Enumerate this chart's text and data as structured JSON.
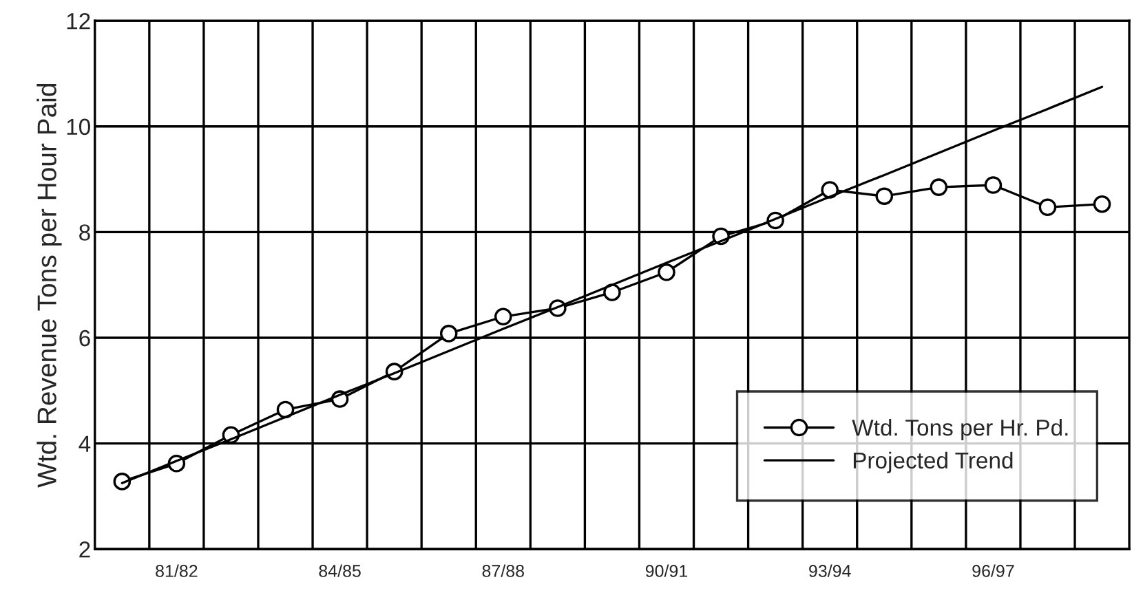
{
  "chart_data": {
    "type": "line",
    "ylabel": "Wtd. Revenue Tons per Hour Paid",
    "categories": [
      null,
      "81/82",
      null,
      null,
      "84/85",
      null,
      null,
      "87/88",
      null,
      null,
      "90/91",
      null,
      null,
      "93/94",
      null,
      null,
      "96/97",
      null,
      null
    ],
    "series": [
      {
        "name": "Wtd. Tons per Hr. Pd.",
        "color": "#000000",
        "marker": "circle",
        "values": [
          3.28,
          3.62,
          4.16,
          4.64,
          4.84,
          5.36,
          6.08,
          6.4,
          6.56,
          6.86,
          7.24,
          7.92,
          8.22,
          8.8,
          8.68,
          8.85,
          8.89,
          8.47,
          8.53
        ]
      },
      {
        "name": "Projected Trend",
        "color": "#000000",
        "marker": "none",
        "values": [
          3.25,
          3.67,
          4.08,
          4.5,
          4.92,
          5.33,
          5.75,
          6.17,
          6.58,
          7.0,
          7.42,
          7.83,
          8.25,
          8.67,
          9.08,
          9.5,
          9.92,
          10.33,
          10.75
        ]
      }
    ],
    "ylim": [
      2,
      12
    ],
    "yticks": [
      2,
      4,
      6,
      8,
      10,
      12
    ],
    "grid": true,
    "legend": "bottom right",
    "line_style": "solid"
  }
}
